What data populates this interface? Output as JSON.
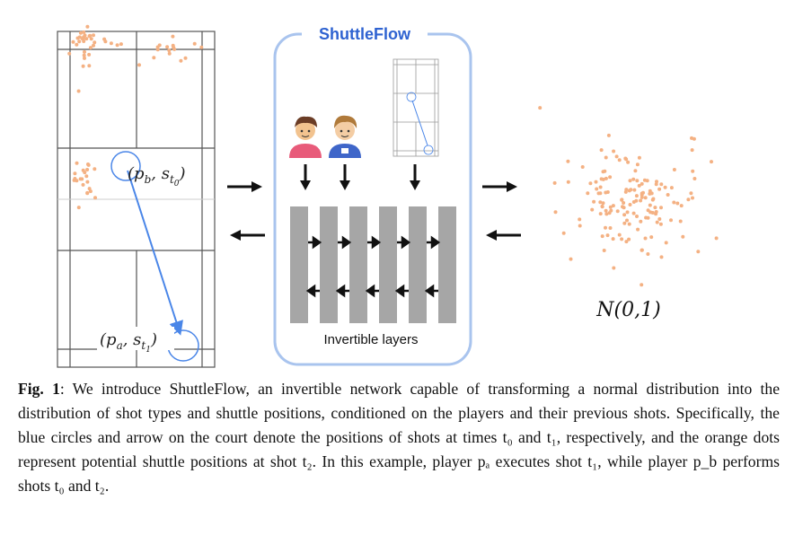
{
  "figure": {
    "brand_title": "ShuttleFlow",
    "layers_label": "Invertible layers",
    "distribution_label": "N(0,1)",
    "court_labels": {
      "top": {
        "symbol": "p",
        "sub": "b",
        "s_sub": "t",
        "s_subsub": "0"
      },
      "bottom": {
        "symbol": "p",
        "sub": "a",
        "s_sub": "t",
        "s_subsub": "1"
      }
    },
    "icons": [
      "player-a-avatar-icon",
      "player-b-avatar-icon",
      "court-thumbnail-icon"
    ],
    "colors": {
      "accent_blue": "#4a86e8",
      "box_border": "#a9c4ee",
      "orange_dots": "#f4b183",
      "layer_bars": "#a6a6a6"
    }
  },
  "caption": {
    "label": "Fig. 1",
    "text": ": We introduce ShuttleFlow, an invertible network capable of transforming a normal distribution into the distribution of shot types and shuttle positions, conditioned on the players and their previous shots. Specifically, the blue circles and arrow on the court denote the positions of shots at times t₀ and t₁, respectively, and the orange dots represent potential shuttle positions at shot t₂. In this example, player pₐ executes shot t₁, while player p_b performs shots t₀ and t₂."
  }
}
